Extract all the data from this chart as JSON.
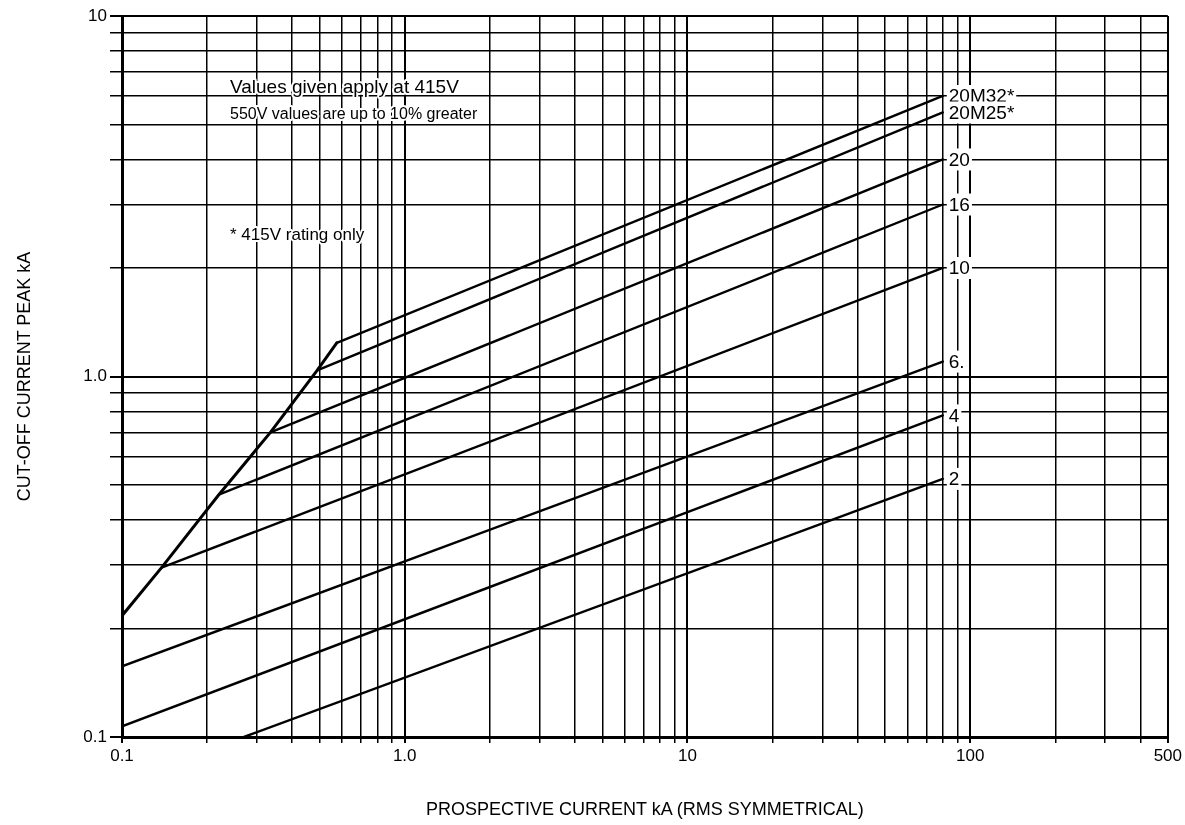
{
  "chart_data": {
    "type": "line",
    "xlabel": "PROSPECTIVE CURRENT kA (RMS SYMMETRICAL)",
    "ylabel": "CUT-OFF CURRENT PEAK kA",
    "annotations": [
      "Values given apply at 415V",
      "550V values are up to 10% greater",
      "* 415V rating only"
    ],
    "log": "xy",
    "grid": true,
    "legend": false,
    "marker": "none",
    "line_style": "solid",
    "xlim": [
      0.1,
      500
    ],
    "ylim": [
      0.1,
      10
    ],
    "xticks": [
      0.1,
      {
        "value": 0.2,
        "label": null
      },
      {
        "value": 0.3,
        "label": null
      },
      {
        "value": 0.4,
        "label": null
      },
      {
        "value": 0.5,
        "label": null
      },
      {
        "value": 0.6,
        "label": null
      },
      {
        "value": 0.7,
        "label": null
      },
      {
        "value": 0.8,
        "label": null
      },
      {
        "value": 0.9,
        "label": null
      },
      {
        "value": 1,
        "label": "1.0"
      },
      {
        "value": 2,
        "label": null
      },
      {
        "value": 3,
        "label": null
      },
      {
        "value": 4,
        "label": null
      },
      {
        "value": 5,
        "label": null
      },
      {
        "value": 6,
        "label": null
      },
      {
        "value": 7,
        "label": null
      },
      {
        "value": 8,
        "label": null
      },
      {
        "value": 9,
        "label": null
      },
      10,
      {
        "value": 20,
        "label": null
      },
      {
        "value": 30,
        "label": null
      },
      {
        "value": 40,
        "label": null
      },
      {
        "value": 50,
        "label": null
      },
      {
        "value": 60,
        "label": null
      },
      {
        "value": 70,
        "label": null
      },
      {
        "value": 80,
        "label": null
      },
      {
        "value": 90,
        "label": null
      },
      100,
      {
        "value": 200,
        "label": null
      },
      {
        "value": 300,
        "label": null
      },
      {
        "value": 400,
        "label": null
      },
      500
    ],
    "yticks": [
      0.1,
      {
        "value": 0.2,
        "label": null
      },
      {
        "value": 0.3,
        "label": null
      },
      {
        "value": 0.4,
        "label": null
      },
      {
        "value": 0.5,
        "label": null
      },
      {
        "value": 0.6,
        "label": null
      },
      {
        "value": 0.7,
        "label": null
      },
      {
        "value": 0.8,
        "label": null
      },
      {
        "value": 0.9,
        "label": null
      },
      {
        "value": 1,
        "label": "1.0"
      },
      {
        "value": 2,
        "label": null
      },
      {
        "value": 3,
        "label": null
      },
      {
        "value": 4,
        "label": null
      },
      {
        "value": 5,
        "label": null
      },
      {
        "value": 6,
        "label": null
      },
      {
        "value": 7,
        "label": null
      },
      {
        "value": 8,
        "label": null
      },
      {
        "value": 9,
        "label": null
      },
      10
    ],
    "series": [
      {
        "color": "#000000",
        "x": [
          0.1,
          0.138,
          0.22,
          0.335,
          0.49,
          0.575
        ],
        "values": [
          0.217,
          0.295,
          0.47,
          0.7,
          1.04,
          1.24
        ]
      },
      {
        "name": "20M32*",
        "color": "#000000",
        "x": [
          0.575,
          80
        ],
        "values": [
          1.24,
          6.0
        ]
      },
      {
        "name": "20M25*",
        "color": "#000000",
        "x": [
          0.49,
          80
        ],
        "values": [
          1.04,
          5.4
        ]
      },
      {
        "name": "20",
        "color": "#000000",
        "x": [
          0.335,
          80
        ],
        "values": [
          0.7,
          4.0
        ]
      },
      {
        "name": "16",
        "color": "#000000",
        "x": [
          0.22,
          80
        ],
        "values": [
          0.47,
          3.0
        ]
      },
      {
        "name": "10",
        "color": "#000000",
        "x": [
          0.138,
          80
        ],
        "values": [
          0.295,
          2.0
        ]
      },
      {
        "name": "6.",
        "color": "#000000",
        "x": [
          0.1,
          80
        ],
        "values": [
          0.157,
          1.1
        ]
      },
      {
        "name": "4",
        "color": "#000000",
        "x": [
          0.1,
          80
        ],
        "values": [
          0.107,
          0.78
        ]
      },
      {
        "name": "2",
        "color": "#000000",
        "x": [
          0.27,
          80
        ],
        "values": [
          0.1,
          0.52
        ]
      }
    ]
  }
}
